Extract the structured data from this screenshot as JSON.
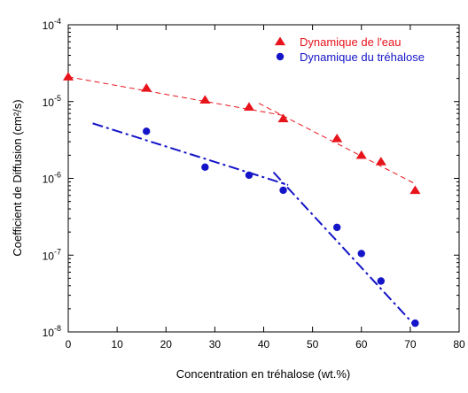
{
  "chart_data": {
    "type": "scatter",
    "xlabel": "Concentration en tréhalose (wt.%)",
    "ylabel": "Coefficient de Diffusion (cm²/s)",
    "xlim": [
      0,
      80
    ],
    "ylim": [
      1e-08,
      0.0001
    ],
    "yscale": "log",
    "xticks": [
      0,
      10,
      20,
      30,
      40,
      50,
      60,
      70,
      80
    ],
    "yticks": [
      {
        "value": 1e-08,
        "base": "10",
        "exp": "-8"
      },
      {
        "value": 1e-07,
        "base": "10",
        "exp": "-7"
      },
      {
        "value": 1e-06,
        "base": "10",
        "exp": "-6"
      },
      {
        "value": 1e-05,
        "base": "10",
        "exp": "-5"
      },
      {
        "value": 0.0001,
        "base": "10",
        "exp": "-4"
      }
    ],
    "legend_position": "top-right",
    "series": [
      {
        "name": "Dynamique de l'eau",
        "marker": "triangle",
        "color": "#e8141c",
        "x": [
          0,
          16,
          28,
          37,
          44,
          55,
          60,
          64,
          71
        ],
        "y": [
          2.1e-05,
          1.5e-05,
          1.05e-05,
          8.5e-06,
          6e-06,
          3.3e-06,
          2e-06,
          1.65e-06,
          7e-07
        ],
        "fits": [
          {
            "style": "dashed",
            "x": [
              0,
              44
            ],
            "y": [
              2.1e-05,
              6.6e-06
            ]
          },
          {
            "style": "dashed",
            "x": [
              39,
              71
            ],
            "y": [
              9.5e-06,
              8.5e-07
            ]
          }
        ]
      },
      {
        "name": "Dynamique du tréhalose",
        "marker": "circle",
        "color": "#1414c8",
        "x": [
          16,
          28,
          37,
          44,
          55,
          60,
          64,
          71
        ],
        "y": [
          4.1e-06,
          1.4e-06,
          1.1e-06,
          7e-07,
          2.3e-07,
          1.05e-07,
          4.6e-08,
          1.3e-08
        ],
        "fits": [
          {
            "style": "dash-dot",
            "x": [
              5,
              45
            ],
            "y": [
              5.2e-06,
              8.2e-07
            ]
          },
          {
            "style": "dash-dot",
            "x": [
              42,
              71
            ],
            "y": [
              1.2e-06,
              1.2e-08
            ]
          }
        ]
      }
    ]
  }
}
